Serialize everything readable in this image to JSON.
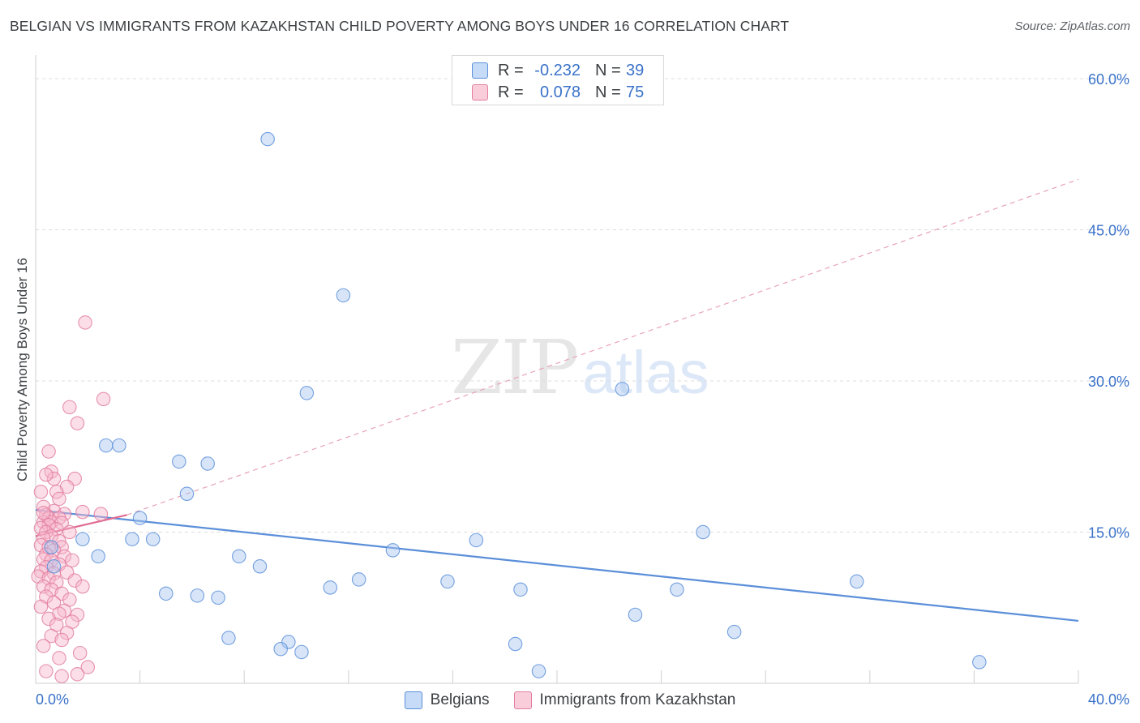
{
  "header": {
    "title": "BELGIAN VS IMMIGRANTS FROM KAZAKHSTAN CHILD POVERTY AMONG BOYS UNDER 16 CORRELATION CHART",
    "source": "Source: ZipAtlas.com"
  },
  "watermark": {
    "zip": "ZIP",
    "atlas": "atlas"
  },
  "legend": {
    "rows": [
      {
        "r_label": "R =",
        "r_value": "-0.232",
        "n_label": "N =",
        "n_value": "39",
        "color": "#a8c6f0",
        "border": "#5b8fd9"
      },
      {
        "r_label": "R =",
        "r_value": "0.078",
        "n_label": "N =",
        "n_value": "75",
        "color": "#f7b6cb",
        "border": "#e27ea0"
      }
    ],
    "bottom": [
      {
        "label": "Belgians",
        "color": "#a8c6f0",
        "border": "#5b8fd9"
      },
      {
        "label": "Immigrants from Kazakhstan",
        "color": "#f7b6cb",
        "border": "#e27ea0"
      }
    ]
  },
  "chart_data": {
    "type": "scatter",
    "xlabel": "",
    "ylabel": "Child Poverty Among Boys Under 16",
    "xlim": [
      0,
      40
    ],
    "ylim": [
      0,
      60
    ],
    "x_tick_labels": {
      "min": "0.0%",
      "max": "40.0%"
    },
    "y_ticks": [
      {
        "value": 15,
        "label": "15.0%"
      },
      {
        "value": 30,
        "label": "30.0%"
      },
      {
        "value": 45,
        "label": "45.0%"
      },
      {
        "value": 60,
        "label": "60.0%"
      }
    ],
    "grid": true,
    "series": [
      {
        "name": "Belgians",
        "color": "#5b8fd9",
        "fill": "#a8c6f0",
        "points": [
          [
            8.9,
            54.0
          ],
          [
            11.8,
            38.5
          ],
          [
            10.4,
            28.8
          ],
          [
            22.5,
            29.2
          ],
          [
            2.7,
            23.6
          ],
          [
            3.2,
            23.6
          ],
          [
            5.5,
            22.0
          ],
          [
            6.6,
            21.8
          ],
          [
            5.8,
            18.8
          ],
          [
            4.0,
            16.4
          ],
          [
            25.6,
            15.0
          ],
          [
            1.8,
            14.3
          ],
          [
            3.7,
            14.3
          ],
          [
            4.5,
            14.3
          ],
          [
            16.9,
            14.2
          ],
          [
            0.6,
            13.5
          ],
          [
            13.7,
            13.2
          ],
          [
            2.4,
            12.6
          ],
          [
            7.8,
            12.6
          ],
          [
            8.6,
            11.6
          ],
          [
            0.7,
            11.6
          ],
          [
            12.4,
            10.3
          ],
          [
            11.3,
            9.5
          ],
          [
            18.6,
            9.3
          ],
          [
            24.6,
            9.3
          ],
          [
            5.0,
            8.9
          ],
          [
            6.2,
            8.7
          ],
          [
            7.0,
            8.5
          ],
          [
            23.0,
            6.8
          ],
          [
            26.8,
            5.1
          ],
          [
            7.4,
            4.5
          ],
          [
            9.7,
            4.1
          ],
          [
            18.4,
            3.9
          ],
          [
            9.4,
            3.4
          ],
          [
            10.2,
            3.1
          ],
          [
            36.2,
            2.1
          ],
          [
            19.3,
            1.2
          ],
          [
            15.8,
            10.1
          ],
          [
            31.5,
            10.1
          ]
        ],
        "trend": {
          "x": [
            0,
            40
          ],
          "y": [
            17.2,
            6.2
          ],
          "dashed": false
        }
      },
      {
        "name": "Immigrants from Kazakhstan",
        "color": "#e27ea0",
        "fill": "#f7b6cb",
        "points": [
          [
            1.9,
            35.8
          ],
          [
            2.6,
            28.2
          ],
          [
            1.3,
            27.4
          ],
          [
            1.6,
            25.8
          ],
          [
            0.5,
            23.0
          ],
          [
            0.6,
            21.0
          ],
          [
            1.5,
            20.3
          ],
          [
            0.7,
            20.3
          ],
          [
            0.4,
            20.7
          ],
          [
            1.2,
            19.5
          ],
          [
            0.8,
            19.0
          ],
          [
            0.2,
            19.0
          ],
          [
            0.9,
            18.3
          ],
          [
            0.3,
            17.5
          ],
          [
            1.8,
            17.0
          ],
          [
            0.7,
            17.1
          ],
          [
            1.1,
            16.8
          ],
          [
            0.4,
            16.7
          ],
          [
            0.5,
            16.4
          ],
          [
            0.9,
            16.4
          ],
          [
            0.3,
            16.0
          ],
          [
            0.6,
            16.0
          ],
          [
            1.0,
            15.9
          ],
          [
            0.5,
            15.7
          ],
          [
            0.2,
            15.4
          ],
          [
            0.8,
            15.3
          ],
          [
            0.4,
            15.0
          ],
          [
            1.3,
            15.0
          ],
          [
            0.6,
            14.6
          ],
          [
            0.3,
            14.4
          ],
          [
            0.9,
            14.1
          ],
          [
            0.2,
            13.7
          ],
          [
            0.5,
            13.5
          ],
          [
            1.0,
            13.5
          ],
          [
            0.7,
            13.2
          ],
          [
            0.4,
            12.8
          ],
          [
            1.1,
            12.6
          ],
          [
            0.3,
            12.3
          ],
          [
            1.4,
            12.2
          ],
          [
            0.6,
            12.2
          ],
          [
            0.9,
            11.8
          ],
          [
            0.4,
            11.5
          ],
          [
            0.2,
            11.1
          ],
          [
            1.2,
            11.0
          ],
          [
            0.7,
            10.9
          ],
          [
            0.1,
            10.6
          ],
          [
            0.5,
            10.4
          ],
          [
            1.5,
            10.2
          ],
          [
            0.8,
            10.0
          ],
          [
            0.3,
            9.6
          ],
          [
            1.8,
            9.6
          ],
          [
            0.6,
            9.3
          ],
          [
            1.0,
            8.9
          ],
          [
            0.4,
            8.6
          ],
          [
            1.3,
            8.3
          ],
          [
            0.7,
            8.0
          ],
          [
            0.2,
            7.6
          ],
          [
            1.1,
            7.2
          ],
          [
            0.9,
            6.9
          ],
          [
            1.6,
            6.8
          ],
          [
            0.5,
            6.4
          ],
          [
            1.4,
            6.1
          ],
          [
            0.8,
            5.8
          ],
          [
            1.2,
            5.0
          ],
          [
            0.6,
            4.7
          ],
          [
            1.0,
            4.3
          ],
          [
            0.3,
            3.7
          ],
          [
            1.7,
            3.0
          ],
          [
            0.9,
            2.5
          ],
          [
            2.0,
            1.6
          ],
          [
            0.4,
            1.2
          ],
          [
            1.6,
            0.9
          ],
          [
            1.0,
            0.7
          ],
          [
            2.5,
            16.8
          ],
          [
            0.3,
            16.9
          ]
        ],
        "trend_solid": {
          "x": [
            0,
            3.5
          ],
          "y": [
            14.6,
            16.7
          ]
        },
        "trend_dashed": {
          "x": [
            3.5,
            40
          ],
          "y": [
            16.7,
            50.0
          ]
        }
      }
    ]
  }
}
